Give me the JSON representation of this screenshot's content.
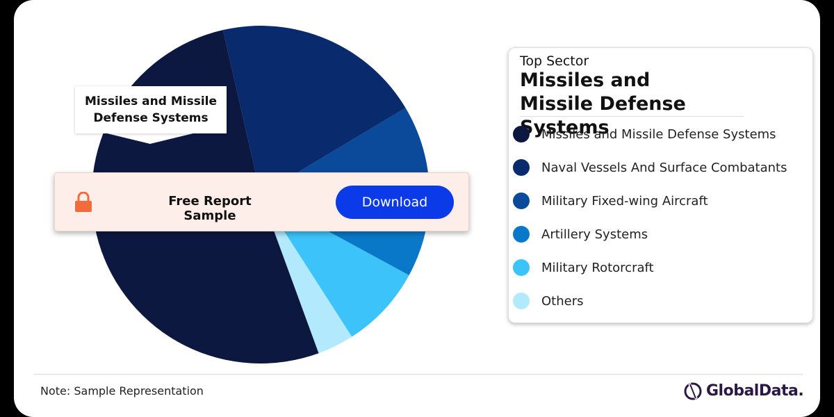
{
  "chart_data": {
    "type": "pie",
    "categories": [
      "Missiles and Missile Defense Systems",
      "Naval Vessels And Surface Combatants",
      "Military Fixed-wing Aircraft",
      "Artillery Systems",
      "Military Rotorcraft",
      "Others"
    ],
    "values": [
      52,
      20,
      8.5,
      8,
      8,
      3.5
    ],
    "colors": [
      "#0d1840",
      "#0a2a6e",
      "#0b4a9a",
      "#0a78c8",
      "#3cc4fa",
      "#b3e9fc"
    ]
  },
  "top_sector_label": "Top Sector",
  "banner": {
    "text": "Free Report Sample",
    "button": "Download"
  },
  "note": "Note: Sample Representation",
  "logo": "GlobalData."
}
